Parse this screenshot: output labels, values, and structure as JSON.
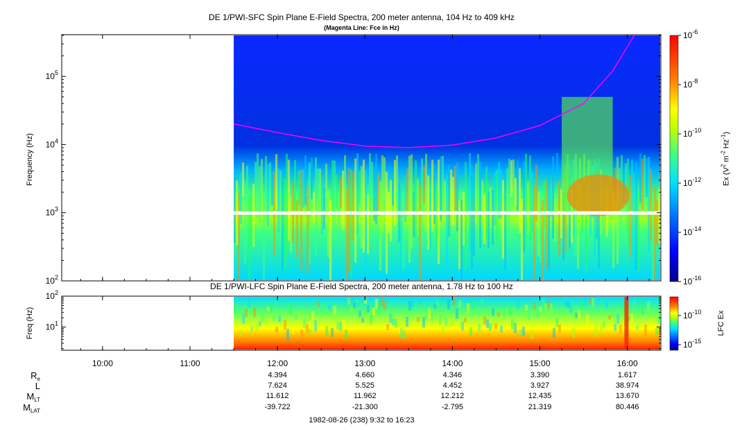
{
  "chart_data": [
    {
      "type": "heatmap",
      "title": "DE 1/PWI-SFC  Spin Plane E-Field Spectra, 200 meter antenna, 104 Hz to 409 kHz",
      "subtitle": "(Magenta Line: Fce in Hz)",
      "ylabel": "Frequency (Hz)",
      "yscale": "log",
      "ylim": [
        100,
        409000
      ],
      "y_ticks": [
        {
          "value": 100,
          "base": "10",
          "exp": "2"
        },
        {
          "value": 1000,
          "base": "10",
          "exp": "3"
        },
        {
          "value": 10000,
          "base": "10",
          "exp": "4"
        },
        {
          "value": 100000,
          "base": "10",
          "exp": "5"
        }
      ],
      "x_time_range": [
        "09:32",
        "16:23"
      ],
      "data_start": "11:30",
      "colorbar": {
        "label_main": "Ex (V",
        "label_sup1": "2",
        "label_mid": " m",
        "label_sup2": "-2",
        "label_mid2": " Hz",
        "label_sup3": "-1",
        "label_end": ")",
        "scale": "log",
        "range": [
          1e-16,
          1e-06
        ],
        "ticks": [
          {
            "value": 1e-06,
            "base": "10",
            "exp": "-6"
          },
          {
            "value": 1e-08,
            "base": "10",
            "exp": "-8"
          },
          {
            "value": 1e-10,
            "base": "10",
            "exp": "-10"
          },
          {
            "value": 1e-12,
            "base": "10",
            "exp": "-12"
          },
          {
            "value": 1e-14,
            "base": "10",
            "exp": "-14"
          },
          {
            "value": 1e-16,
            "base": "10",
            "exp": "-16"
          }
        ],
        "colors": [
          "#0000a0",
          "#0000ff",
          "#0080ff",
          "#00e0ff",
          "#40ff80",
          "#c0ff00",
          "#ffff00",
          "#ff8000",
          "#ff0000"
        ]
      },
      "fce_line": {
        "color": "#ff00ff",
        "points": [
          {
            "t": "11:30",
            "f": 20000
          },
          {
            "t": "12:00",
            "f": 15000
          },
          {
            "t": "12:30",
            "f": 11500
          },
          {
            "t": "13:00",
            "f": 9500
          },
          {
            "t": "13:30",
            "f": 9000
          },
          {
            "t": "14:00",
            "f": 9800
          },
          {
            "t": "14:30",
            "f": 12500
          },
          {
            "t": "15:00",
            "f": 19000
          },
          {
            "t": "15:30",
            "f": 40000
          },
          {
            "t": "15:50",
            "f": 120000
          },
          {
            "t": "16:05",
            "f": 409000
          }
        ]
      }
    },
    {
      "type": "heatmap",
      "title": "DE 1/PWI-LFC  Spin Plane E-Field Spectra, 200 meter antenna, 1.78 Hz to 100 Hz",
      "ylabel": "Freq (Hz)",
      "yscale": "log",
      "ylim": [
        1.78,
        100
      ],
      "y_ticks": [
        {
          "value": 10,
          "base": "10",
          "exp": "1"
        },
        {
          "value": 100,
          "base": "10",
          "exp": "2"
        }
      ],
      "colorbar": {
        "label": "LFC Ex",
        "ticks": [
          {
            "value": 1e-10,
            "base": "10",
            "exp": "-10"
          },
          {
            "value": 1e-15,
            "base": "10",
            "exp": "-15"
          }
        ]
      }
    }
  ],
  "x_axis": {
    "ticks": [
      "10:00",
      "11:00",
      "12:00",
      "13:00",
      "14:00",
      "15:00",
      "16:00"
    ]
  },
  "ephemeris": {
    "rows": [
      {
        "label": "R",
        "sub": "e",
        "values": [
          "4.394",
          "4.660",
          "4.346",
          "3.390",
          "1.617"
        ]
      },
      {
        "label": "L",
        "sub": "",
        "values": [
          "7.624",
          "5.525",
          "4.452",
          "3.927",
          "38.974"
        ]
      },
      {
        "label": "M",
        "sub": "LT",
        "values": [
          "11.612",
          "11.962",
          "12.212",
          "12.435",
          "13.670"
        ]
      },
      {
        "label": "M",
        "sub": "LAT",
        "values": [
          "-39.722",
          "-21.300",
          "-2.795",
          "21.319",
          "80.446"
        ]
      }
    ],
    "columns": [
      "12:00",
      "13:00",
      "14:00",
      "15:00",
      "16:00"
    ],
    "footer": "1982-08-26 (238) 9:32 to 16:23"
  }
}
